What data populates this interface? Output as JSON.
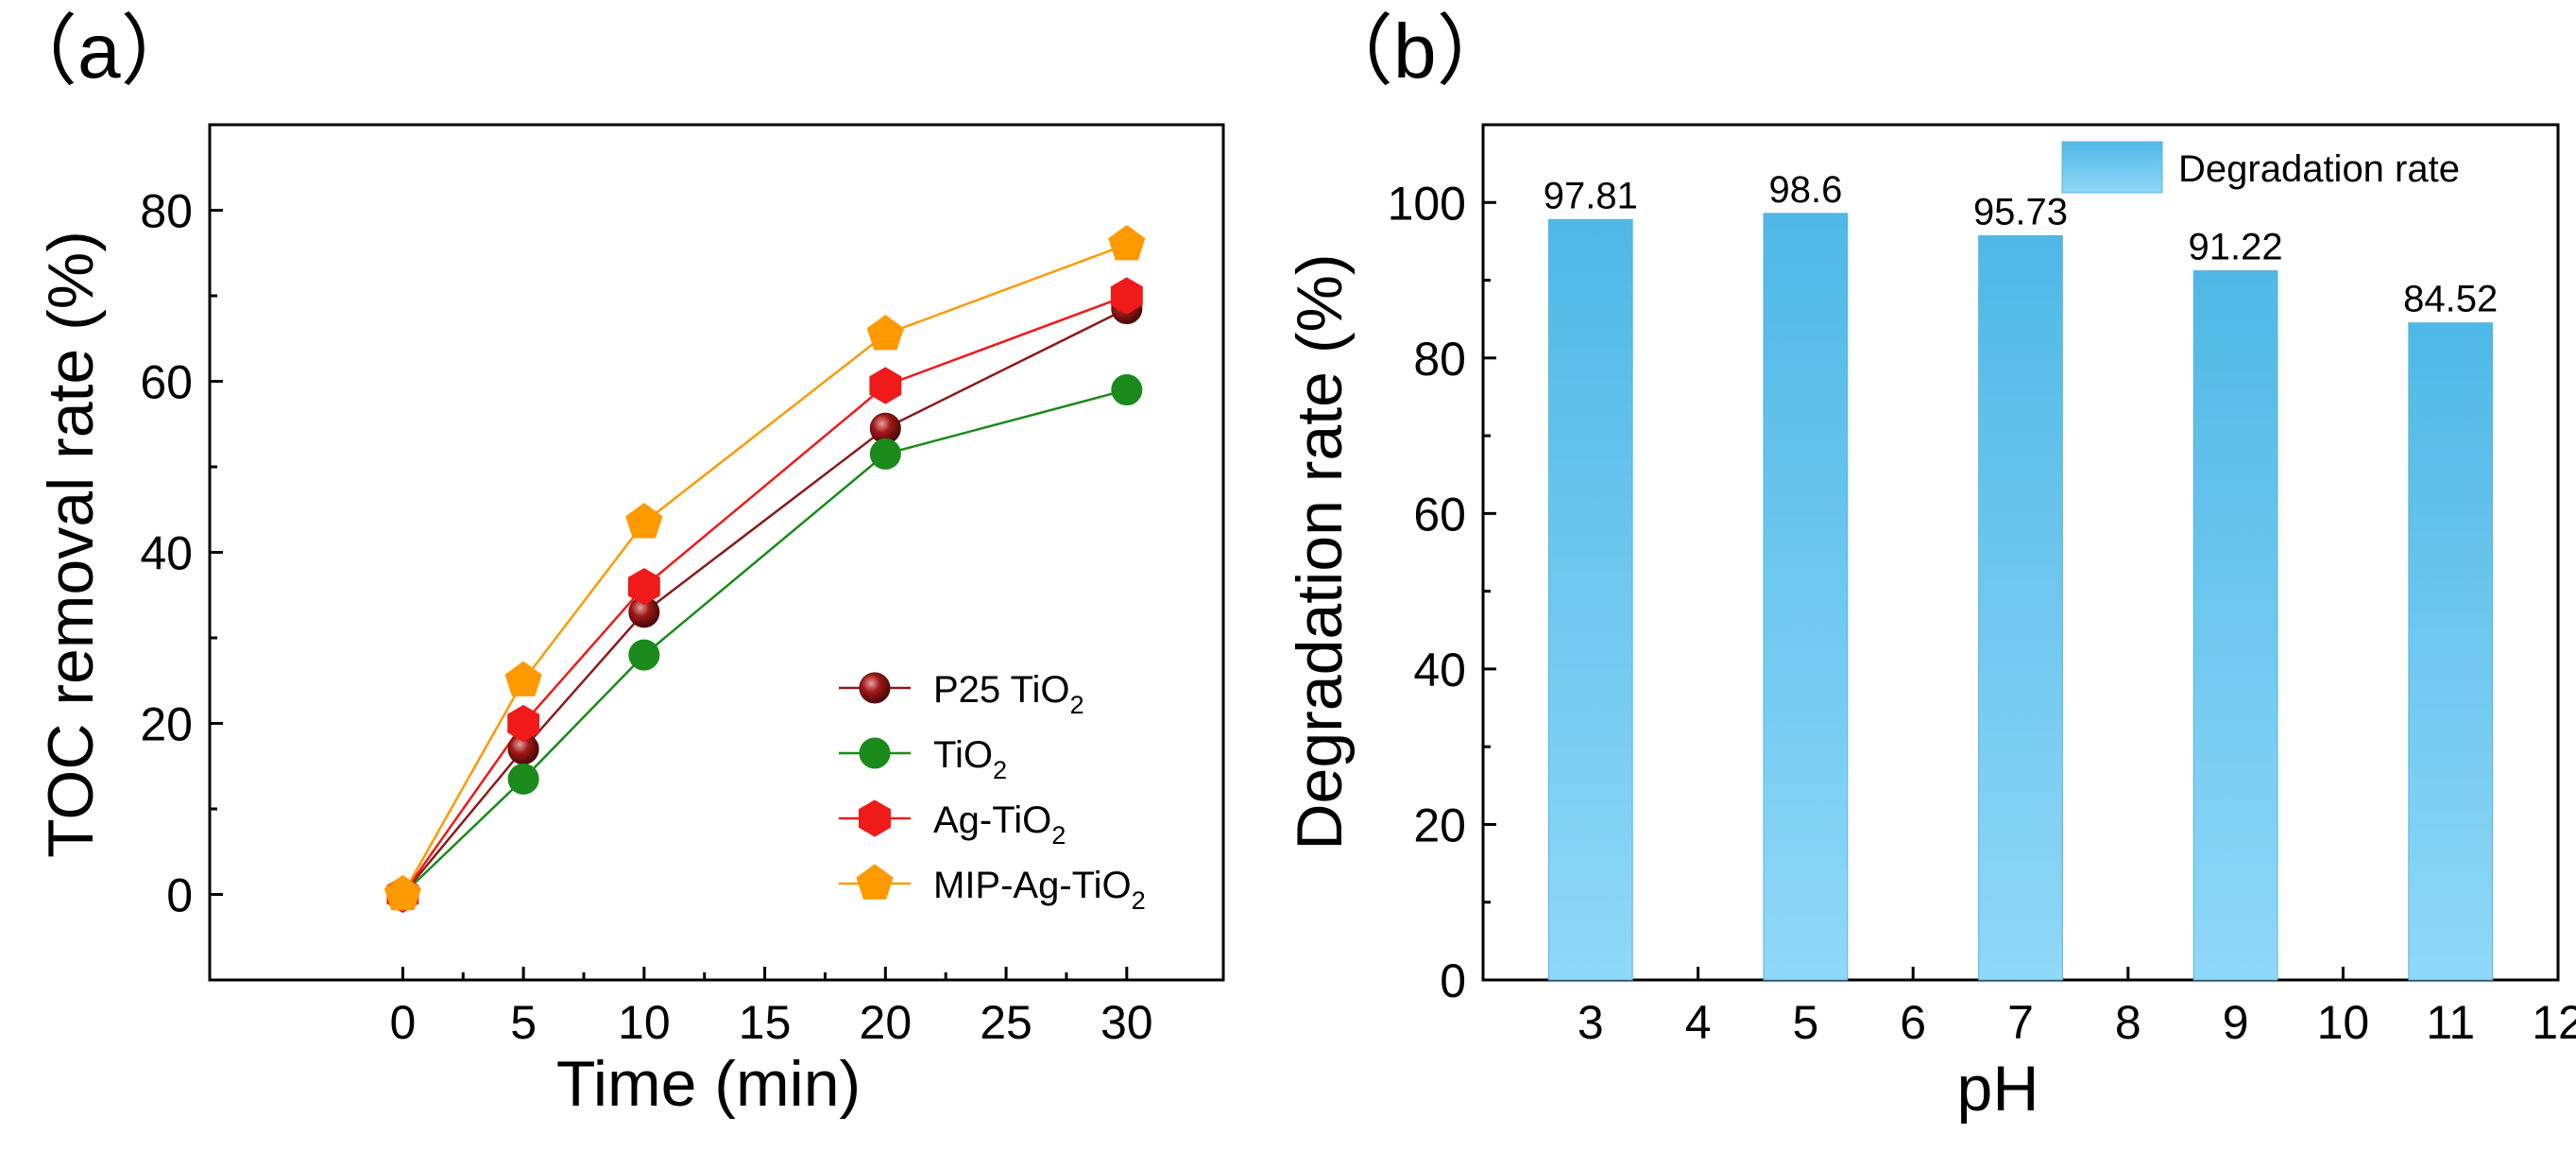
{
  "chart_data": [
    {
      "panel_label": "（a）",
      "type": "line",
      "xlabel": "Time (min)",
      "ylabel": "TOC removal rate (%)",
      "xlim": [
        -8,
        34
      ],
      "ylim": [
        -10,
        90
      ],
      "xticks": [
        0,
        5,
        10,
        15,
        20,
        25,
        30
      ],
      "yticks": [
        0,
        20,
        40,
        60,
        80
      ],
      "x": [
        0,
        5,
        10,
        20,
        30
      ],
      "legend_position": "bottom-right",
      "series": [
        {
          "name": "P25 TiO",
          "subscript": "2",
          "color": "#8b1a1a",
          "marker": "sphere",
          "values": [
            0,
            17,
            33,
            54.5,
            68.5
          ]
        },
        {
          "name": "TiO",
          "subscript": "2",
          "color": "#1a8a1a",
          "marker": "circle",
          "values": [
            0,
            13.5,
            28,
            51.5,
            59
          ]
        },
        {
          "name": "Ag-TiO",
          "subscript": "2",
          "color": "#f01a1a",
          "marker": "hexagon",
          "values": [
            0,
            20,
            36,
            59.5,
            70
          ]
        },
        {
          "name": "MIP-Ag-TiO",
          "subscript": "2",
          "color": "#ff9900",
          "marker": "pentagon",
          "values": [
            0,
            25,
            43.5,
            65.5,
            76
          ]
        }
      ]
    },
    {
      "panel_label": "（b）",
      "type": "bar",
      "xlabel": "pH",
      "ylabel": "Degradation rate (%)",
      "xlim": [
        2,
        12
      ],
      "ylim": [
        0,
        110
      ],
      "xticks": [
        3,
        4,
        5,
        6,
        7,
        8,
        9,
        10,
        11,
        12
      ],
      "yticks": [
        0,
        20,
        40,
        60,
        80,
        100
      ],
      "categories": [
        3,
        5,
        7,
        9,
        11
      ],
      "values": [
        97.81,
        98.6,
        95.73,
        91.22,
        84.52
      ],
      "data_labels": [
        "97.81",
        "98.6",
        "95.73",
        "91.22",
        "84.52"
      ],
      "legend": "Degradation rate",
      "legend_position": "top-right",
      "bar_color_top": "#4fb8e6",
      "bar_color_bottom": "#8fd8f8"
    }
  ]
}
